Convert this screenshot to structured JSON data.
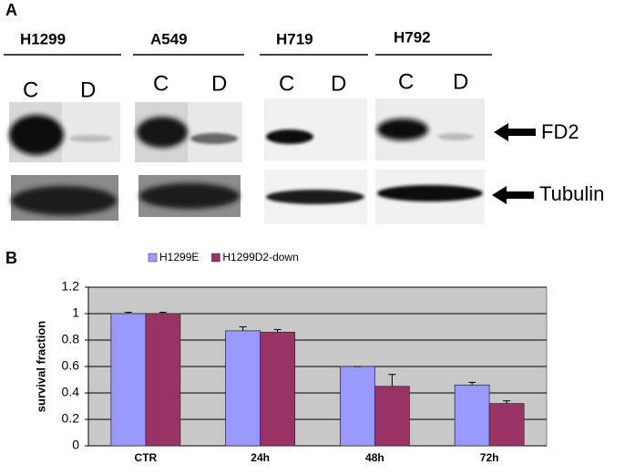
{
  "panel_labels": [
    "A",
    "B"
  ],
  "panel_a": {
    "cell_lines": [
      {
        "name": "H1299",
        "lanes": [
          "C",
          "D"
        ]
      },
      {
        "name": "A549",
        "lanes": [
          "C",
          "D"
        ]
      },
      {
        "name": "H719",
        "lanes": [
          "C",
          "D"
        ]
      },
      {
        "name": "H792",
        "lanes": [
          "C",
          "D"
        ]
      }
    ],
    "markers": [
      "FD2",
      "Tubulin"
    ]
  },
  "chart_data": {
    "type": "bar",
    "y_label": "survival fraction",
    "categories": [
      "CTR",
      "24h",
      "48h",
      "72h"
    ],
    "series": [
      {
        "name": "H1299E",
        "color": "#9999ff",
        "values": [
          1.0,
          0.87,
          0.6,
          0.46
        ],
        "errors": [
          0.01,
          0.03,
          0,
          0.02
        ]
      },
      {
        "name": "H1299D2-down",
        "color": "#993366",
        "values": [
          1.0,
          0.86,
          0.45,
          0.32
        ],
        "errors": [
          0.01,
          0.02,
          0.09,
          0.02
        ]
      }
    ],
    "ylim": [
      0,
      1.2
    ],
    "yticks": [
      0,
      0.2,
      0.4,
      0.6,
      0.8,
      1,
      1.2
    ],
    "grid": true
  }
}
